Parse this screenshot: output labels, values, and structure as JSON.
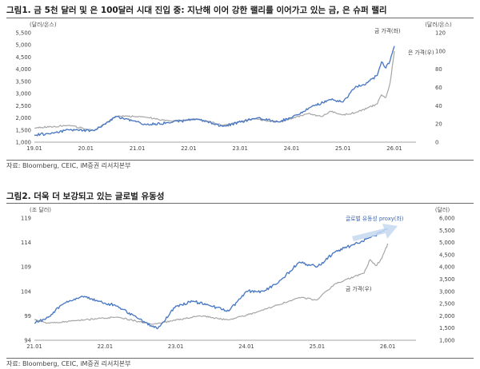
{
  "figures": [
    {
      "title": "그림1.  금 5천 달러 및 은 100달러 시대 진입 중: 지난해 이어 강한 랠리를 이어가고 있는 금, 은 슈퍼 랠리",
      "source": "자료: Bloomberg, CEIC, iM증권 리서치본부"
    },
    {
      "title": "그림2.  더욱 더 보강되고 있는 글로벌 유동성",
      "source": "자료: Bloomberg, CEIC, iM증권 리서치본부"
    }
  ],
  "colors": {
    "blue": "#4a78c2",
    "gray": "#a6a6a6",
    "arrow": "#c5d8f0"
  },
  "chart_data": [
    {
      "type": "line",
      "x_ticks": [
        "19.01",
        "20.01",
        "21.01",
        "22.01",
        "23.01",
        "24.01",
        "25.01",
        "26.01"
      ],
      "left_unit": "(달러/온스)",
      "right_unit": "(달러/온스)",
      "ylim_left": [
        1000,
        5500
      ],
      "ylim_right": [
        0,
        120
      ],
      "left_ticks": [
        "1,000",
        "1,500",
        "2,000",
        "2,500",
        "3,000",
        "3,500",
        "4,000",
        "4,500",
        "5,000",
        "5,500"
      ],
      "right_ticks": [
        "0",
        "20",
        "40",
        "60",
        "80",
        "100",
        "120"
      ],
      "series": [
        {
          "name": "금 가격(좌)",
          "axis": "left",
          "color": "#4a78c2",
          "x": [
            "2019-01",
            "2019-06",
            "2019-09",
            "2020-03",
            "2020-08",
            "2020-12",
            "2021-03",
            "2021-08",
            "2022-03",
            "2022-09",
            "2023-05",
            "2023-10",
            "2024-03",
            "2024-05",
            "2024-10",
            "2025-01",
            "2025-04",
            "2025-06",
            "2025-09",
            "2025-10",
            "2025-11",
            "2025-12",
            "2026-01"
          ],
          "values": [
            1290,
            1400,
            1510,
            1480,
            2050,
            1880,
            1720,
            1800,
            1950,
            1650,
            2000,
            1830,
            2170,
            2400,
            2750,
            2650,
            3300,
            3350,
            3750,
            4300,
            4050,
            4350,
            4950
          ]
        },
        {
          "name": "은 가격(우)",
          "axis": "right",
          "color": "#a6a6a6",
          "x": [
            "2019-01",
            "2019-09",
            "2020-03",
            "2020-08",
            "2021-02",
            "2021-09",
            "2022-03",
            "2022-09",
            "2023-04",
            "2023-10",
            "2024-05",
            "2024-08",
            "2024-10",
            "2025-01",
            "2025-04",
            "2025-07",
            "2025-09",
            "2025-10",
            "2025-11",
            "2025-12",
            "2026-01"
          ],
          "values": [
            15.5,
            18.5,
            12.5,
            28.5,
            28,
            23,
            25.5,
            18.5,
            25.5,
            22,
            31.5,
            28,
            34,
            30,
            32.5,
            38,
            42,
            52,
            49,
            65,
            100
          ]
        }
      ]
    },
    {
      "type": "line",
      "x_ticks": [
        "21.01",
        "22.01",
        "23.01",
        "24.01",
        "25.01",
        "26.01"
      ],
      "left_unit": "(조 달러)",
      "right_unit": "(달러)",
      "ylim_left": [
        94,
        119
      ],
      "ylim_right": [
        1000,
        6000
      ],
      "left_ticks": [
        "94",
        "99",
        "104",
        "109",
        "114",
        "119"
      ],
      "right_ticks": [
        "1,000",
        "1,500",
        "2,000",
        "2,500",
        "3,000",
        "3,500",
        "4,000",
        "4,500",
        "5,000",
        "5,500",
        "6,000"
      ],
      "series": [
        {
          "name": "글로벌 유동성 proxy(좌)",
          "axis": "left",
          "color": "#4a78c2",
          "x": [
            "2021-01",
            "2021-03",
            "2021-06",
            "2021-09",
            "2021-12",
            "2022-03",
            "2022-06",
            "2022-09",
            "2022-10",
            "2023-01",
            "2023-04",
            "2023-07",
            "2023-10",
            "2024-01",
            "2024-04",
            "2024-07",
            "2024-10",
            "2025-01",
            "2025-04",
            "2025-07",
            "2025-10",
            "2026-01"
          ],
          "values": [
            97.5,
            98.5,
            101.5,
            103,
            102,
            101,
            99,
            96.8,
            96.5,
            101,
            102,
            101,
            100,
            104,
            104,
            106.5,
            110,
            109,
            112,
            113.5,
            115,
            116.8
          ]
        },
        {
          "name": "금 가격(우)",
          "axis": "right",
          "color": "#a6a6a6",
          "x": [
            "2021-01",
            "2021-03",
            "2021-08",
            "2022-03",
            "2022-09",
            "2023-05",
            "2023-10",
            "2024-03",
            "2024-10",
            "2025-01",
            "2025-04",
            "2025-09",
            "2025-10",
            "2025-11",
            "2025-12",
            "2026-01"
          ],
          "values": [
            1850,
            1700,
            1800,
            1950,
            1650,
            2000,
            1830,
            2170,
            2750,
            2650,
            3300,
            3750,
            4300,
            4050,
            4350,
            4950
          ]
        }
      ]
    }
  ]
}
